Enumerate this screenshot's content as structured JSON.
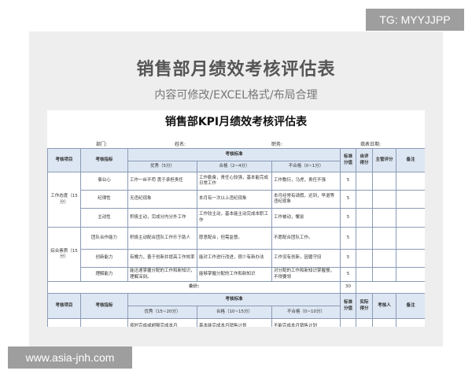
{
  "watermark": "TG: MYYJJPP",
  "site": "www.asia-jnh.com",
  "panel": {
    "title": "销售部月绩效考核评估表",
    "subtitle": "内容可修改/EXCEL格式/布局合理"
  },
  "doc": {
    "title": "销售部KPI月绩效考核评估表",
    "meta": [
      "部门:",
      "姓名:",
      "职务:",
      "填表日期:"
    ],
    "header1": {
      "item": "考核项目",
      "indicator": "考核指标",
      "standard": "考核标准",
      "std_score": "标准分值",
      "self": "自评得分",
      "mgr": "主管评分",
      "note": "备注",
      "excellent": "优秀（5分）",
      "pass": "合格（2~4分）",
      "fail": "不合格（0~1分）"
    },
    "groups": [
      {
        "name": "工作态度（15分）",
        "rows": [
          {
            "indicator": "事业心",
            "excellent": "工作一丝不苟 勇于承担责任",
            "pass": "工作勤奋，责任心较强，基本能完成日常工作",
            "fail": "工作敷衍，马虎，责任不强",
            "score": "5"
          },
          {
            "indicator": "纪律性",
            "excellent": "无违纪现象",
            "pass": "本月有一次以上违纪现象",
            "fail": "本月经常有请假，迟到，早退等违纪现象",
            "score": "5"
          },
          {
            "indicator": "主动性",
            "excellent": "积极主动，完成分内分外工作",
            "pass": "工作较主动，基本能主动完成本职工作",
            "fail": "工作被动，懈怠",
            "score": "5"
          }
        ]
      },
      {
        "name": "综合素质（15分）",
        "rows": [
          {
            "indicator": "团队合作能力",
            "excellent": "积极主动配合团队工作乐于助人",
            "pass": "愿意配合，但需监督。",
            "fail": "不愿配合团队工作。",
            "score": "5"
          },
          {
            "indicator": "创新能力",
            "excellent": "有魄力，善于创新并提高工作效率",
            "pass": "能对工作进行改进，很少有新办法",
            "fail": "工作没有创新，因循守旧",
            "score": "5"
          },
          {
            "indicator": "理解能力",
            "excellent": "能迅速掌握分配的工作和新知识，理解深刻。",
            "pass": "能够掌握分配的工作和新知识",
            "fail": "对分配的工作和新知识掌握慢，不得要领",
            "score": "5"
          }
        ]
      }
    ],
    "total_label": "合计:",
    "total": "30",
    "header2": {
      "item": "考核项目",
      "indicator": "考核指标",
      "standard": "考核标准",
      "std_score": "标准分值",
      "actual": "实际得分",
      "assessor": "考核人",
      "note": "备注",
      "excellent": "优秀（15~20分）",
      "pass": "合格（10~15分）",
      "fail": "不合格（0~10分）"
    },
    "partial": {
      "excellent": "按时完成或超额完成本月",
      "pass": "基本能完成本月销售计划",
      "fail": "不能完成本月销售计划"
    }
  }
}
